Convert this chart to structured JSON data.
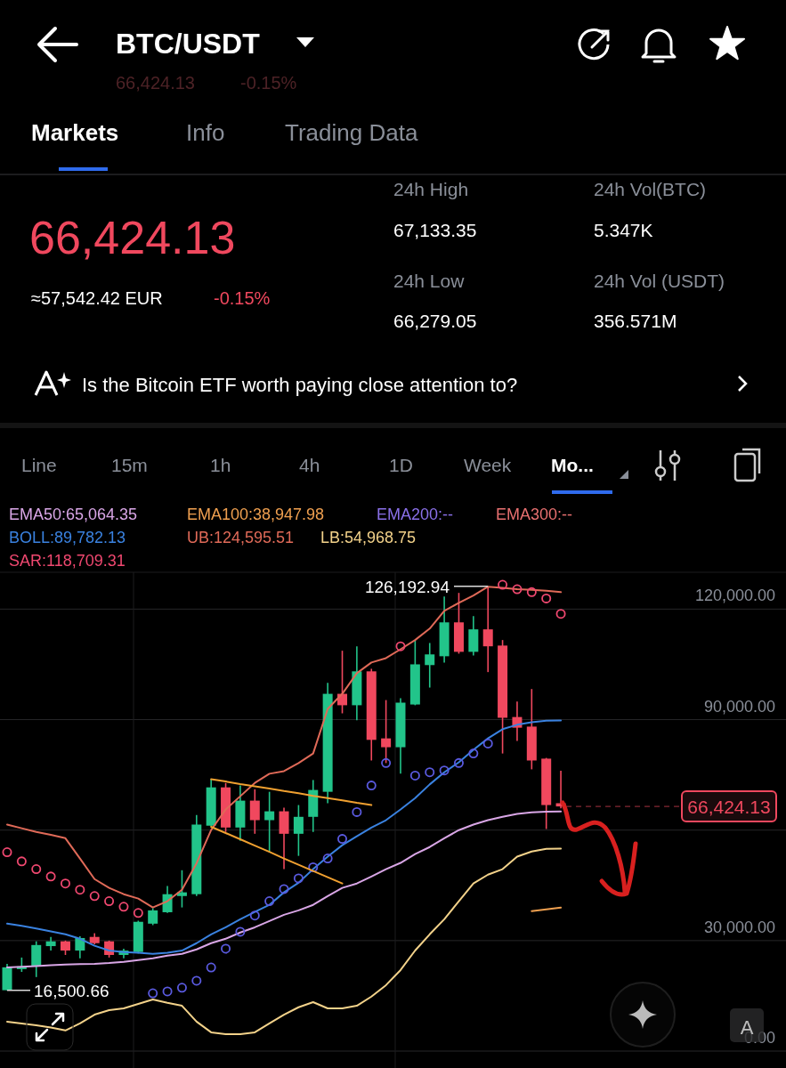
{
  "chart_data": {
    "type": "candlestick",
    "title": "BTC/USDT",
    "categories": [
      null,
      null,
      null,
      null,
      null,
      null,
      null,
      null,
      null,
      null,
      null,
      null,
      null,
      null,
      null,
      null,
      null,
      null,
      null,
      null,
      null,
      null,
      null,
      null,
      null,
      null,
      null,
      null,
      null,
      null,
      null,
      null,
      null,
      null,
      null,
      null,
      null,
      null,
      null
    ],
    "ohlc": [
      [
        16530,
        23700,
        16500.66,
        22750
      ],
      [
        22260,
        25400,
        21500,
        23000
      ],
      [
        23200,
        29800,
        20100,
        28800
      ],
      [
        28500,
        31000,
        27300,
        29800
      ],
      [
        29800,
        30000,
        26100,
        27300
      ],
      [
        27300,
        31200,
        25200,
        30700
      ],
      [
        31000,
        32000,
        29000,
        29300
      ],
      [
        29800,
        30000,
        25400,
        26100
      ],
      [
        26100,
        27800,
        25200,
        27300
      ],
      [
        26900,
        35400,
        26500,
        35100
      ],
      [
        34600,
        38800,
        34200,
        38200
      ],
      [
        37700,
        44800,
        37500,
        42600
      ],
      [
        42100,
        49100,
        39000,
        43100
      ],
      [
        42600,
        64100,
        42100,
        61500
      ],
      [
        61200,
        73800,
        61000,
        71600
      ],
      [
        71600,
        72800,
        59500,
        60700
      ],
      [
        60700,
        72100,
        57100,
        68000
      ],
      [
        68000,
        71100,
        59000,
        62700
      ],
      [
        62700,
        70400,
        54000,
        65100
      ],
      [
        65100,
        66100,
        49400,
        59000
      ],
      [
        59000,
        66800,
        53000,
        63600
      ],
      [
        63600,
        73600,
        59500,
        70900
      ],
      [
        70400,
        100000,
        67300,
        97000
      ],
      [
        97000,
        108700,
        91700,
        93900
      ],
      [
        93900,
        109900,
        89800,
        103100
      ],
      [
        103100,
        103800,
        78900,
        84500
      ],
      [
        84900,
        95300,
        78200,
        82500
      ],
      [
        82500,
        95800,
        75300,
        94600
      ],
      [
        94100,
        111600,
        93900,
        105000
      ],
      [
        104800,
        110800,
        98700,
        107700
      ],
      [
        107200,
        123400,
        105500,
        116400
      ],
      [
        116400,
        124400,
        107900,
        108400
      ],
      [
        108400,
        118100,
        107400,
        114500
      ],
      [
        114500,
        126192.94,
        102900,
        109900
      ],
      [
        110100,
        111600,
        80800,
        90500
      ],
      [
        90700,
        94900,
        84200,
        87800
      ],
      [
        88100,
        98300,
        76500,
        78900
      ],
      [
        79400,
        79600,
        60300,
        66800
      ],
      [
        67300,
        76100,
        65900,
        66424.13
      ]
    ],
    "series": [
      {
        "name": "EMA50:65,064.35",
        "type": "line",
        "color": "#d9a6e6",
        "values": [
          22700,
          22900,
          23100,
          23300,
          23500,
          23600,
          23700,
          23900,
          24200,
          24700,
          25200,
          25900,
          26400,
          27600,
          29300,
          30500,
          32200,
          33600,
          35300,
          37000,
          38200,
          39700,
          42100,
          44300,
          45500,
          47400,
          49400,
          51100,
          53500,
          55400,
          57800,
          60000,
          61500,
          62700,
          63600,
          64400,
          64800,
          65000,
          65064.35
        ]
      },
      {
        "name": "EMA100:38,947.98",
        "type": "line",
        "color": "#f0a050",
        "values": [
          null,
          null,
          null,
          null,
          null,
          null,
          null,
          null,
          null,
          null,
          null,
          null,
          null,
          null,
          null,
          null,
          null,
          null,
          null,
          null,
          null,
          null,
          null,
          null,
          null,
          null,
          null,
          null,
          null,
          null,
          null,
          null,
          null,
          null,
          null,
          null,
          38000,
          38500,
          38947.98
        ]
      },
      {
        "name": "BOLL:89,782.13",
        "type": "line",
        "color": "#3a82e0",
        "values": [
          34600,
          34000,
          33300,
          32500,
          31700,
          30500,
          28600,
          27300,
          26900,
          26700,
          26400,
          26700,
          27300,
          29300,
          31700,
          33600,
          35800,
          37800,
          39700,
          43100,
          45700,
          49400,
          52800,
          55900,
          58300,
          60700,
          62700,
          65600,
          68700,
          72400,
          75700,
          78400,
          81800,
          84900,
          87400,
          88600,
          89300,
          89700,
          89782.13
        ]
      },
      {
        "name": "UB:124,595.51",
        "type": "line",
        "color": "#e06a58",
        "values": [
          61500,
          60500,
          59500,
          58700,
          57800,
          52300,
          46700,
          44300,
          42600,
          41400,
          39000,
          40700,
          43800,
          51000,
          60000,
          65600,
          69200,
          72800,
          75300,
          76000,
          78200,
          80800,
          92900,
          97000,
          102600,
          105500,
          106700,
          109100,
          111600,
          114700,
          119500,
          121700,
          123700,
          126100,
          125800,
          125400,
          125200,
          125000,
          124595.51
        ]
      },
      {
        "name": "LB:54,968.75",
        "type": "line",
        "color": "#f3d28a",
        "values": [
          8000,
          7500,
          7000,
          6400,
          5600,
          7500,
          9900,
          11100,
          11600,
          12800,
          14000,
          13100,
          12300,
          8000,
          5100,
          4600,
          4600,
          5100,
          7500,
          9900,
          11900,
          13300,
          11600,
          11600,
          12300,
          14800,
          17900,
          22000,
          27300,
          31700,
          35800,
          40700,
          45500,
          47900,
          49400,
          52800,
          54200,
          54900,
          54968.75
        ]
      },
      {
        "name": "SAR:118,709.31",
        "type": "scatter",
        "marker": "circle",
        "color": "#f04870",
        "colors": [
          "#f04870",
          "#f04870",
          "#f04870",
          "#f04870",
          "#f04870",
          "#f04870",
          "#f04870",
          "#f04870",
          "#f04870",
          "#f04870",
          "#5a5ae0",
          "#5a5ae0",
          "#5a5ae0",
          "#5a5ae0",
          "#5a5ae0",
          "#5a5ae0",
          "#5a5ae0",
          "#5a5ae0",
          "#5a5ae0",
          "#5a5ae0",
          "#5a5ae0",
          "#5a5ae0",
          "#5a5ae0",
          "#5a5ae0",
          "#5a5ae0",
          "#5a5ae0",
          "#5a5ae0",
          "#f04870",
          "#5a5ae0",
          "#5a5ae0",
          "#5a5ae0",
          "#5a5ae0",
          "#5a5ae0",
          "#5a5ae0",
          "#f04870",
          "#f04870",
          "#f04870",
          "#f04870",
          "#f04870"
        ],
        "values": [
          54000,
          51500,
          49400,
          47400,
          45500,
          43800,
          42100,
          40700,
          39200,
          37500,
          15700,
          16200,
          17200,
          19100,
          22700,
          27800,
          32400,
          36800,
          40700,
          44000,
          46900,
          49900,
          52300,
          57600,
          64900,
          72100,
          78200,
          109900,
          74800,
          75700,
          76200,
          78200,
          80800,
          83500,
          126600,
          125400,
          124600,
          122900,
          118709.31
        ]
      },
      {
        "type": "line",
        "color": "#f0a030",
        "values": [
          null,
          null,
          null,
          null,
          null,
          null,
          null,
          null,
          null,
          null,
          null,
          null,
          null,
          null,
          73800,
          73200,
          72500,
          71900,
          71300,
          70600,
          70000,
          69300,
          68700,
          68100,
          67400,
          66800,
          null,
          null,
          null,
          null,
          null,
          null,
          null,
          null,
          null,
          null,
          null,
          null,
          null
        ]
      },
      {
        "type": "line",
        "color": "#f0a030",
        "values": [
          null,
          null,
          null,
          null,
          null,
          null,
          null,
          null,
          null,
          null,
          null,
          null,
          null,
          null,
          60900,
          59200,
          57500,
          55800,
          54100,
          52300,
          50600,
          48900,
          47200,
          45500,
          null,
          null,
          null,
          null,
          null,
          null,
          null,
          null,
          null,
          null,
          null,
          null,
          null,
          null,
          null
        ]
      }
    ],
    "ylim": [
      0,
      130000
    ],
    "yticks": [
      {
        "value": 0,
        "label": "0.00"
      },
      {
        "value": 30000,
        "label": "30,000.00"
      },
      {
        "value": 60000,
        "label": null
      },
      {
        "value": 90000,
        "label": "90,000.00"
      },
      {
        "value": 120000,
        "label": "120,000.00"
      }
    ],
    "grid": "y",
    "legend": "top",
    "tick_labels": "y",
    "line_style": "solid",
    "ref_lines": [
      {
        "axis": "y",
        "value": 66424.13,
        "label": "66,424.13",
        "color": "#f0485e",
        "line_style": "dashed"
      }
    ],
    "annotations": [
      "66,424.13",
      "-0.15%",
      "Markets",
      "Info",
      "Trading Data",
      "66,424.13",
      "≈57,542.42 EUR",
      "-0.15%",
      "24h High",
      "67,133.35",
      "24h Low",
      "66,279.05",
      "24h Vol(BTC)",
      "5.347K",
      "24h Vol (USDT)",
      "356.571M",
      "Is the Bitcoin ETF worth paying close attention to?",
      "Line",
      "15m",
      "1h",
      "4h",
      "1D",
      "Week",
      "Mo...",
      "A",
      "EMA200:--",
      "EMA300:--",
      "126,192.94",
      "16,500.66"
    ]
  }
}
